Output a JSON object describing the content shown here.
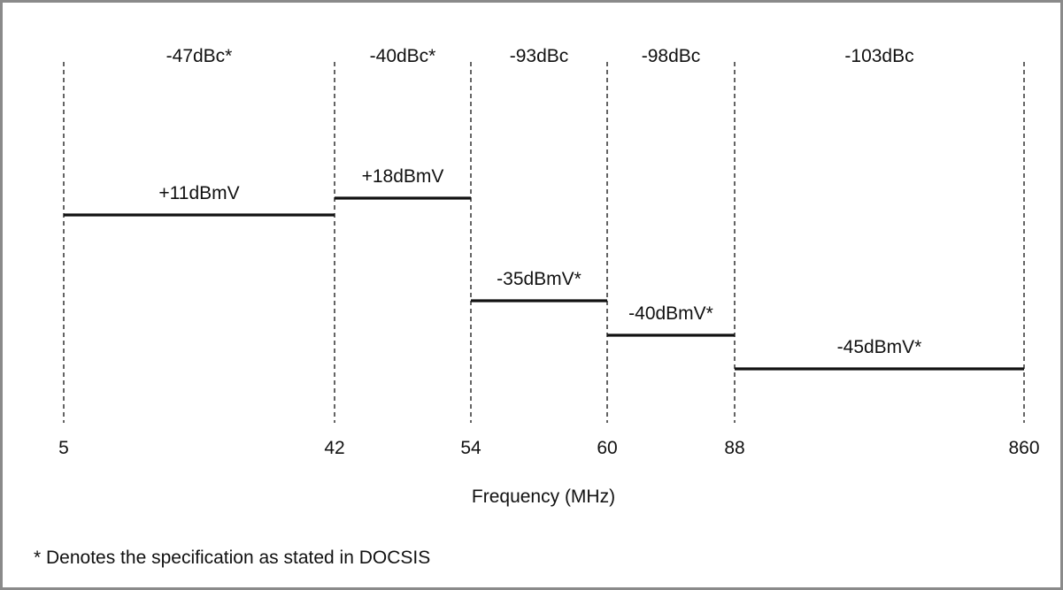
{
  "chart_data": {
    "type": "step",
    "xlabel": "Frequency (MHz)",
    "boundaries": [
      5,
      42,
      54,
      60,
      88,
      860
    ],
    "tick_labels": [
      "5",
      "42",
      "54",
      "60",
      "88",
      "860"
    ],
    "bands": [
      {
        "from": 5,
        "to": 42,
        "level_dBmV": 11,
        "level_label": "+11dBmV",
        "spur_label": "-47dBc*"
      },
      {
        "from": 42,
        "to": 54,
        "level_dBmV": 18,
        "level_label": "+18dBmV",
        "spur_label": "-40dBc*"
      },
      {
        "from": 54,
        "to": 60,
        "level_dBmV": -35,
        "level_label": "-35dBmV*",
        "spur_label": "-93dBc"
      },
      {
        "from": 60,
        "to": 88,
        "level_dBmV": -40,
        "level_label": "-40dBmV*",
        "spur_label": "-98dBc"
      },
      {
        "from": 88,
        "to": 860,
        "level_dBmV": -45,
        "level_label": "-45dBmV*",
        "spur_label": "-103dBc"
      }
    ]
  },
  "footnote": "* Denotes the specification as stated in DOCSIS"
}
